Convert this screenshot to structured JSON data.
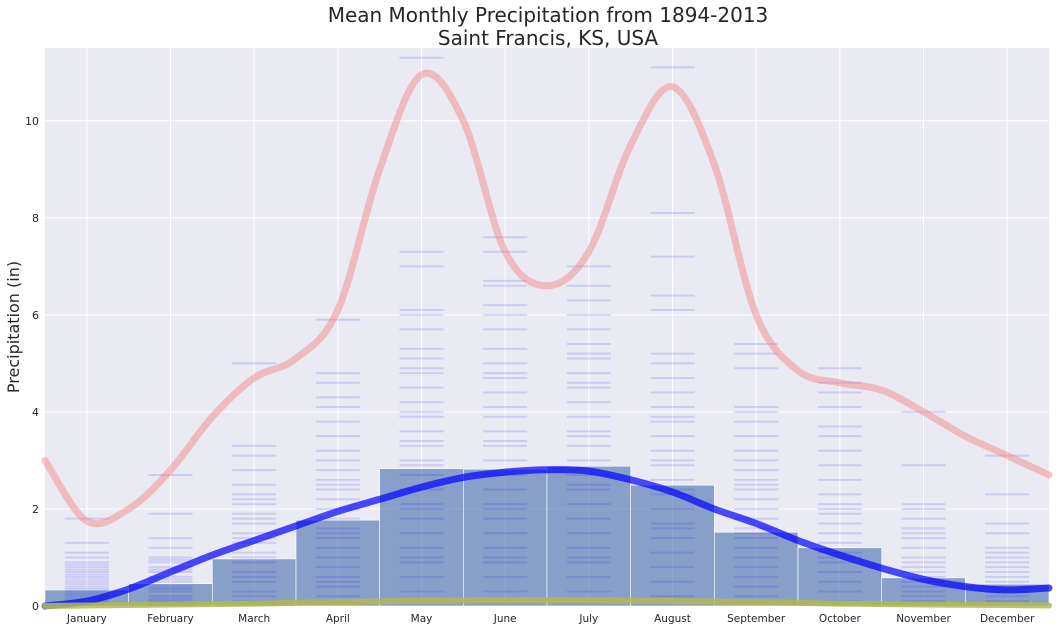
{
  "chart_data": {
    "type": "bar",
    "title": "Mean Monthly Precipitation from 1894-2013",
    "subtitle": "Saint Francis, KS, USA",
    "xlabel": "",
    "ylabel": "Precipitation (in)",
    "ylim": [
      0,
      11.5
    ],
    "yticks": [
      0,
      2,
      4,
      6,
      8,
      10
    ],
    "grid": true,
    "categories": [
      "January",
      "February",
      "March",
      "April",
      "May",
      "June",
      "July",
      "August",
      "September",
      "October",
      "November",
      "December"
    ],
    "series": [
      {
        "kind": "bar",
        "values": [
          0.33,
          0.46,
          0.97,
          1.77,
          2.83,
          2.82,
          2.88,
          2.49,
          1.52,
          1.2,
          0.58,
          0.45
        ],
        "color": "#4c72b0"
      },
      {
        "kind": "yearly-ticks",
        "color": "#0000ff",
        "values": [
          [
            0.1,
            0.2,
            0.3,
            0.4,
            0.5,
            0.6,
            0.7,
            0.8,
            0.9,
            1.0,
            1.1,
            1.3,
            1.8,
            0.15,
            0.25,
            0.35,
            0.45,
            0.55,
            0.65,
            0.75,
            0.85,
            0.05,
            0.02
          ],
          [
            0.1,
            0.2,
            0.3,
            0.4,
            0.5,
            0.6,
            0.7,
            0.8,
            0.9,
            1.0,
            1.2,
            1.4,
            1.9,
            2.7,
            0.15,
            0.35,
            0.55,
            0.75,
            0.95,
            0.05,
            0.02
          ],
          [
            0.1,
            0.3,
            0.5,
            0.7,
            0.9,
            1.1,
            1.3,
            1.5,
            1.7,
            1.9,
            2.1,
            2.3,
            2.5,
            2.8,
            3.1,
            3.3,
            5.0,
            0.2,
            0.6,
            1.0,
            1.4,
            1.8,
            2.2,
            0.05
          ],
          [
            0.2,
            0.4,
            0.6,
            0.8,
            1.0,
            1.2,
            1.4,
            1.6,
            1.8,
            2.0,
            2.2,
            2.4,
            2.6,
            2.8,
            3.0,
            3.2,
            3.5,
            3.8,
            4.1,
            4.3,
            4.6,
            4.8,
            5.9,
            0.5,
            1.5,
            2.5
          ],
          [
            0.3,
            0.6,
            0.9,
            1.2,
            1.5,
            1.8,
            2.1,
            2.4,
            2.7,
            3.0,
            3.3,
            3.6,
            3.9,
            4.2,
            4.5,
            4.8,
            5.1,
            5.3,
            5.7,
            6.0,
            6.1,
            7.0,
            7.3,
            11.3,
            1.0,
            2.0,
            2.9,
            3.4,
            4.0,
            4.9
          ],
          [
            0.3,
            0.6,
            0.9,
            1.2,
            1.5,
            1.8,
            2.1,
            2.4,
            2.7,
            3.0,
            3.3,
            3.6,
            3.9,
            4.1,
            4.4,
            4.7,
            5.0,
            5.3,
            5.7,
            6.0,
            6.2,
            6.6,
            6.7,
            7.3,
            7.6,
            1.0,
            2.0,
            3.4,
            4.8
          ],
          [
            0.3,
            0.6,
            0.9,
            1.2,
            1.5,
            1.8,
            2.1,
            2.4,
            2.7,
            3.0,
            3.3,
            3.6,
            3.9,
            4.2,
            4.5,
            4.8,
            5.1,
            5.4,
            5.7,
            6.0,
            6.3,
            6.6,
            7.0,
            1.0,
            2.5,
            3.5,
            4.6,
            5.2
          ],
          [
            0.2,
            0.5,
            0.8,
            1.1,
            1.4,
            1.7,
            2.0,
            2.3,
            2.6,
            2.9,
            3.2,
            3.5,
            3.8,
            4.1,
            4.4,
            4.7,
            5.0,
            5.2,
            6.1,
            6.4,
            7.2,
            8.1,
            11.1,
            1.6,
            2.4,
            3.0,
            3.9
          ],
          [
            0.2,
            0.4,
            0.6,
            0.8,
            1.0,
            1.2,
            1.4,
            1.6,
            1.8,
            2.0,
            2.2,
            2.4,
            2.6,
            2.8,
            3.0,
            3.2,
            3.5,
            3.8,
            4.0,
            4.1,
            4.9,
            5.2,
            5.4,
            1.5,
            2.5
          ],
          [
            0.1,
            0.3,
            0.5,
            0.7,
            0.9,
            1.1,
            1.3,
            1.5,
            1.7,
            1.9,
            2.1,
            2.3,
            2.6,
            2.9,
            3.2,
            3.5,
            3.7,
            4.1,
            4.4,
            4.6,
            4.9,
            1.0,
            2.0
          ],
          [
            0.1,
            0.2,
            0.4,
            0.6,
            0.8,
            1.0,
            1.2,
            1.4,
            1.6,
            1.8,
            2.0,
            2.1,
            2.9,
            4.0,
            0.3,
            0.5,
            0.7,
            0.9,
            1.5
          ],
          [
            0.1,
            0.2,
            0.3,
            0.5,
            0.7,
            0.9,
            1.1,
            1.2,
            1.5,
            1.7,
            2.3,
            3.1,
            0.4,
            0.6,
            0.8,
            1.0,
            0.05
          ]
        ]
      },
      {
        "kind": "smooth-line",
        "role": "max",
        "color": "#f08080",
        "points": [
          [
            -0.5,
            3.0
          ],
          [
            0,
            1.75
          ],
          [
            0.5,
            2.0
          ],
          [
            1,
            2.8
          ],
          [
            1.5,
            3.9
          ],
          [
            2,
            4.7
          ],
          [
            2.5,
            5.1
          ],
          [
            3,
            6.1
          ],
          [
            3.5,
            9.0
          ],
          [
            4,
            10.95
          ],
          [
            4.5,
            10.0
          ],
          [
            5,
            7.3
          ],
          [
            5.5,
            6.6
          ],
          [
            6,
            7.3
          ],
          [
            6.5,
            9.5
          ],
          [
            7,
            10.7
          ],
          [
            7.5,
            9.1
          ],
          [
            8,
            6.0
          ],
          [
            8.5,
            4.85
          ],
          [
            9,
            4.6
          ],
          [
            9.5,
            4.45
          ],
          [
            10,
            4.0
          ],
          [
            10.5,
            3.5
          ],
          [
            11,
            3.1
          ],
          [
            11.5,
            2.7
          ]
        ]
      },
      {
        "kind": "smooth-line",
        "role": "mean",
        "color": "#0000ff",
        "points": [
          [
            -0.5,
            0
          ],
          [
            0,
            0.1
          ],
          [
            0.5,
            0.35
          ],
          [
            1,
            0.7
          ],
          [
            1.5,
            1.05
          ],
          [
            2,
            1.35
          ],
          [
            2.5,
            1.65
          ],
          [
            3,
            1.95
          ],
          [
            3.5,
            2.2
          ],
          [
            4,
            2.45
          ],
          [
            4.5,
            2.65
          ],
          [
            5,
            2.76
          ],
          [
            5.5,
            2.81
          ],
          [
            6,
            2.78
          ],
          [
            6.5,
            2.6
          ],
          [
            7,
            2.35
          ],
          [
            7.5,
            2.0
          ],
          [
            8,
            1.7
          ],
          [
            8.5,
            1.35
          ],
          [
            9,
            1.05
          ],
          [
            9.5,
            0.78
          ],
          [
            10,
            0.55
          ],
          [
            10.5,
            0.4
          ],
          [
            11,
            0.33
          ],
          [
            11.5,
            0.37
          ]
        ]
      },
      {
        "kind": "smooth-line",
        "role": "min",
        "color": "#b5b850",
        "points": [
          [
            -0.5,
            0
          ],
          [
            0,
            0.01
          ],
          [
            1,
            0.03
          ],
          [
            2,
            0.05
          ],
          [
            3,
            0.08
          ],
          [
            4,
            0.11
          ],
          [
            5,
            0.12
          ],
          [
            6,
            0.12
          ],
          [
            7,
            0.1
          ],
          [
            8,
            0.08
          ],
          [
            9,
            0.05
          ],
          [
            10,
            0.03
          ],
          [
            11,
            0.02
          ],
          [
            11.5,
            0.01
          ]
        ]
      }
    ]
  }
}
